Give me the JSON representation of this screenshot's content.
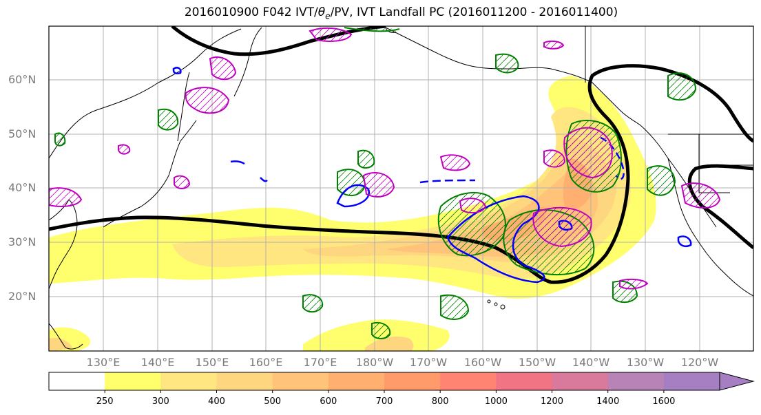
{
  "title": {
    "prefix": "2016010900 F042 IVT/",
    "theta": "θ",
    "theta_sub": "e",
    "suffix": "/PV, IVT Landfall PC (2016011200 - 2016011400)"
  },
  "map": {
    "extent": {
      "lon_min": 120,
      "lon_max": 250,
      "lat_min": 10,
      "lat_max": 70
    },
    "lat_labels": [
      {
        "label": "20°N",
        "lat": 20
      },
      {
        "label": "30°N",
        "lat": 30
      },
      {
        "label": "40°N",
        "lat": 40
      },
      {
        "label": "50°N",
        "lat": 50
      },
      {
        "label": "60°N",
        "lat": 60
      }
    ],
    "lon_labels": [
      {
        "label": "130°E",
        "lon": 130
      },
      {
        "label": "140°E",
        "lon": 140
      },
      {
        "label": "150°E",
        "lon": 150
      },
      {
        "label": "160°E",
        "lon": 160
      },
      {
        "label": "170°E",
        "lon": 170
      },
      {
        "label": "180°W",
        "lon": 180
      },
      {
        "label": "170°W",
        "lon": 190
      },
      {
        "label": "160°W",
        "lon": 200
      },
      {
        "label": "150°W",
        "lon": 210
      },
      {
        "label": "140°W",
        "lon": 220
      },
      {
        "label": "130°W",
        "lon": 230
      },
      {
        "label": "120°W",
        "lon": 240
      }
    ],
    "colors": {
      "theta_e_contour": "#000000",
      "pv_positive": "#008000",
      "pv_negative": "#0000ff",
      "landfall_pc": "#bf00bf"
    }
  },
  "colorbar": {
    "levels": [
      "250",
      "300",
      "400",
      "500",
      "600",
      "700",
      "800",
      "1000",
      "1200",
      "1400",
      "1600"
    ],
    "colors": [
      "#ffffff",
      "#fffe6c",
      "#ffe680",
      "#ffd680",
      "#ffc37a",
      "#ffb070",
      "#ff9a6a",
      "#ff8572",
      "#f07484",
      "#d97a9c",
      "#b884b8",
      "#a67ec2"
    ]
  }
}
